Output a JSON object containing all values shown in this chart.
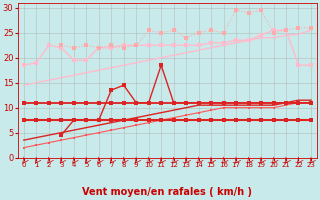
{
  "xlabel": "Vent moyen/en rafales ( km/h )",
  "background_color": "#c8eaea",
  "grid_color": "#aaaaaa",
  "xlim": [
    -0.5,
    23.5
  ],
  "ylim": [
    0,
    31
  ],
  "yticks": [
    0,
    5,
    10,
    15,
    20,
    25,
    30
  ],
  "xticks": [
    0,
    1,
    2,
    3,
    4,
    5,
    6,
    7,
    8,
    9,
    10,
    11,
    12,
    13,
    14,
    15,
    16,
    17,
    18,
    19,
    20,
    21,
    22,
    23
  ],
  "x": [
    0,
    1,
    2,
    3,
    4,
    5,
    6,
    7,
    8,
    9,
    10,
    11,
    12,
    13,
    14,
    15,
    16,
    17,
    18,
    19,
    20,
    21,
    22,
    23
  ],
  "line1_color": "#ffbbcc",
  "line1_y": [
    14.5,
    15.0,
    15.5,
    16.0,
    16.5,
    17.0,
    17.5,
    18.0,
    18.5,
    19.0,
    19.5,
    20.0,
    20.5,
    21.0,
    21.5,
    22.0,
    22.5,
    23.0,
    23.5,
    24.0,
    24.0,
    24.5,
    24.7,
    25.5
  ],
  "line2_color": "#ffbbcc",
  "line2_x": [
    0,
    1,
    2,
    3,
    4,
    5,
    6,
    7,
    8,
    9,
    10,
    11,
    12,
    13,
    14,
    15,
    16,
    17,
    18,
    19,
    20,
    21,
    22,
    23
  ],
  "line2_y": [
    18.5,
    19.0,
    22.5,
    22.0,
    19.5,
    19.5,
    22.0,
    22.0,
    22.5,
    22.5,
    22.5,
    22.5,
    22.5,
    22.5,
    22.5,
    23.0,
    23.0,
    23.5,
    23.5,
    24.5,
    25.5,
    25.5,
    18.5,
    18.5
  ],
  "line3_color": "#ffaaaa",
  "line3_x": [
    0,
    1,
    2,
    3,
    4,
    5,
    6,
    7,
    8,
    9,
    10,
    11,
    12,
    13,
    14,
    15,
    16,
    17,
    18,
    19,
    20,
    21,
    22,
    23
  ],
  "line3_y": [
    null,
    null,
    null,
    22.5,
    22.0,
    22.5,
    22.0,
    22.5,
    22.0,
    22.5,
    25.5,
    25.0,
    25.5,
    24.0,
    25.0,
    25.5,
    25.0,
    29.5,
    29.0,
    29.5,
    25.0,
    25.5,
    26.0,
    26.0
  ],
  "line4_color": "#dd2222",
  "line4_y": [
    11.0,
    11.0,
    11.0,
    11.0,
    11.0,
    11.0,
    11.0,
    11.0,
    11.0,
    11.0,
    11.0,
    11.0,
    11.0,
    11.0,
    11.0,
    11.0,
    11.0,
    11.0,
    11.0,
    11.0,
    11.0,
    11.0,
    11.0,
    11.0
  ],
  "line5_color": "#dd2222",
  "line5_x": [
    0,
    1,
    2,
    3,
    4,
    5,
    6,
    7,
    8,
    9,
    10,
    11,
    12,
    13,
    14,
    15,
    16,
    17,
    18,
    19,
    20,
    21,
    22,
    23
  ],
  "line5_y": [
    null,
    null,
    null,
    4.5,
    7.5,
    7.5,
    7.5,
    13.5,
    14.5,
    11.0,
    11.0,
    18.5,
    11.0,
    11.0,
    11.0,
    11.0,
    11.0,
    11.0,
    11.0,
    11.0,
    11.0,
    11.0,
    11.0,
    11.0
  ],
  "line6_color": "#dd2222",
  "line6_y": [
    7.5,
    7.5,
    7.5,
    7.5,
    7.5,
    7.5,
    7.5,
    7.5,
    7.5,
    7.5,
    7.5,
    7.5,
    7.5,
    7.5,
    7.5,
    7.5,
    7.5,
    7.5,
    7.5,
    7.5,
    7.5,
    7.5,
    7.5,
    7.5
  ],
  "line7_color": "#dd2222",
  "line7_y": [
    3.5,
    4.0,
    4.5,
    5.0,
    5.5,
    6.0,
    6.5,
    7.0,
    7.5,
    8.0,
    8.5,
    9.0,
    9.5,
    10.0,
    10.5,
    10.5,
    10.5,
    10.5,
    10.5,
    10.5,
    10.5,
    11.0,
    11.5,
    11.5
  ],
  "line8_color": "#ff5555",
  "line8_y": [
    2.0,
    2.5,
    3.0,
    3.5,
    4.0,
    4.5,
    5.0,
    5.5,
    6.0,
    6.5,
    7.0,
    7.5,
    8.0,
    8.5,
    9.0,
    9.5,
    10.0,
    10.0,
    10.0,
    10.0,
    10.0,
    10.5,
    11.0,
    11.0
  ],
  "xlabel_color": "#cc0000",
  "tick_color": "#cc0000",
  "axis_color": "#cc0000",
  "xlabel_fontsize": 7,
  "tick_fontsize_x": 5,
  "tick_fontsize_y": 6
}
